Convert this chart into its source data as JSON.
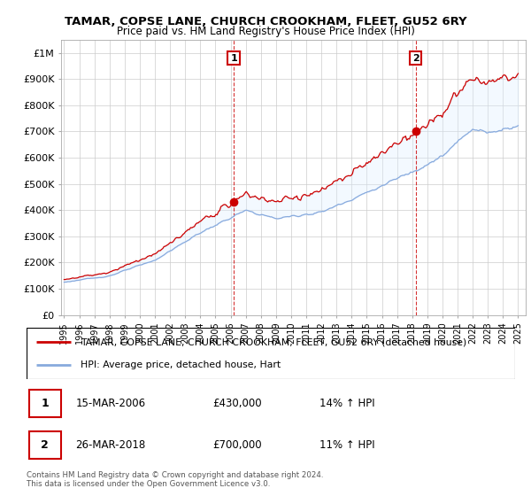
{
  "title": "TAMAR, COPSE LANE, CHURCH CROOKHAM, FLEET, GU52 6RY",
  "subtitle": "Price paid vs. HM Land Registry's House Price Index (HPI)",
  "legend_line1": "TAMAR, COPSE LANE, CHURCH CROOKHAM, FLEET, GU52 6RY (detached house)",
  "legend_line2": "HPI: Average price, detached house, Hart",
  "sale1_date": "15-MAR-2006",
  "sale1_price": "£430,000",
  "sale1_hpi": "14% ↑ HPI",
  "sale1_x": 2006.21,
  "sale1_y": 430000,
  "sale2_date": "26-MAR-2018",
  "sale2_price": "£700,000",
  "sale2_hpi": "11% ↑ HPI",
  "sale2_x": 2018.23,
  "sale2_y": 700000,
  "property_color": "#cc0000",
  "hpi_color": "#88aadd",
  "fill_color": "#ddeeff",
  "background_color": "#ffffff",
  "grid_color": "#cccccc",
  "ylabel_ticks": [
    "£0",
    "£100K",
    "£200K",
    "£300K",
    "£400K",
    "£500K",
    "£600K",
    "£700K",
    "£800K",
    "£900K",
    "£1M"
  ],
  "ytick_values": [
    0,
    100000,
    200000,
    300000,
    400000,
    500000,
    600000,
    700000,
    800000,
    900000,
    1000000
  ],
  "ylim": [
    0,
    1050000
  ],
  "xlim_start": 1994.8,
  "xlim_end": 2025.5
}
